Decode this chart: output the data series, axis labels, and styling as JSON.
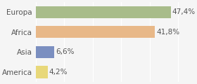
{
  "categories": [
    "Europa",
    "Africa",
    "Asia",
    "America"
  ],
  "values": [
    47.4,
    41.8,
    6.6,
    4.2
  ],
  "labels": [
    "47,4%",
    "41,8%",
    "6,6%",
    "4,2%"
  ],
  "colors": [
    "#a8bc8a",
    "#e8b888",
    "#7b8fc0",
    "#e8d87a"
  ],
  "xlim": [
    0,
    52
  ],
  "background_color": "#f5f5f5",
  "bar_height": 0.6,
  "label_fontsize": 7.5,
  "category_fontsize": 7.5
}
